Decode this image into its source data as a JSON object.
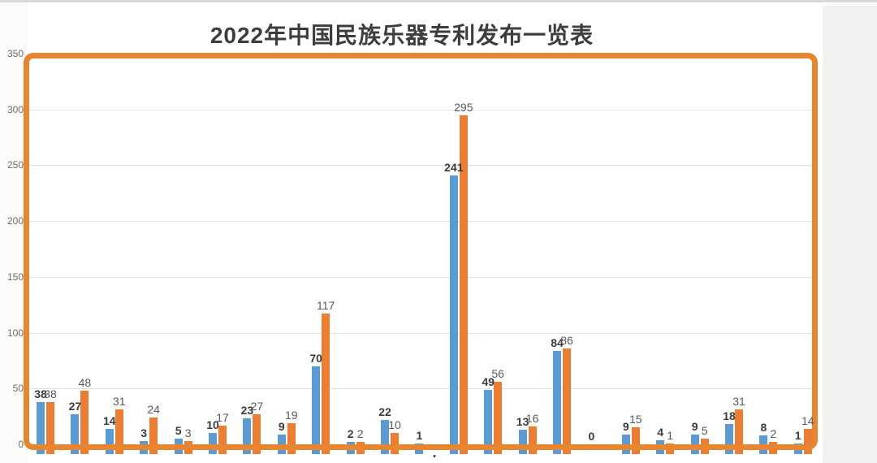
{
  "chart_data": {
    "type": "bar",
    "title": "2022年中国民族乐器专利发布一览表",
    "xlabel": "",
    "ylabel": "",
    "ylim": [
      0,
      350
    ],
    "yticks": [
      0,
      50,
      100,
      150,
      200,
      250,
      300,
      350
    ],
    "grid": true,
    "legend": false,
    "num_groups": 23,
    "series": [
      {
        "name": "blue",
        "color": "#5B9BD5",
        "label_style": "bold-dark",
        "values": [
          38,
          27,
          14,
          3,
          5,
          10,
          23,
          9,
          70,
          2,
          22,
          1,
          241,
          49,
          13,
          84,
          0,
          9,
          4,
          9,
          18,
          8,
          1
        ]
      },
      {
        "name": "orange",
        "color": "#ED7D31",
        "label_style": "regular-gray",
        "values": [
          38,
          48,
          31,
          24,
          3,
          17,
          27,
          19,
          117,
          2,
          10,
          null,
          295,
          56,
          16,
          86,
          null,
          15,
          1,
          5,
          31,
          2,
          14
        ]
      }
    ],
    "plot_border_color": "#E8862F",
    "x_axis_marker": "•",
    "x_tick_labels_visible": false
  }
}
